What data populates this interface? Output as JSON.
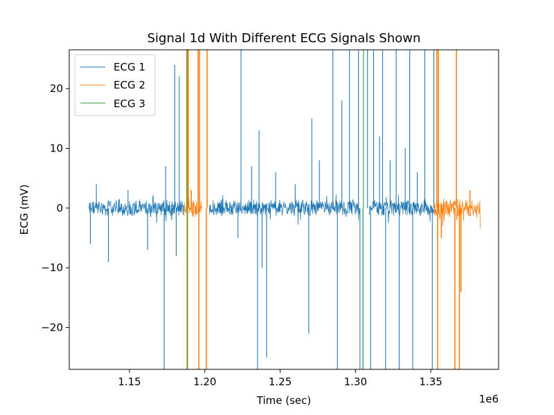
{
  "chart_data": {
    "type": "line",
    "title": "Signal 1d With Different ECG Signals Shown",
    "xlabel": "Time (sec)",
    "ylabel": "ECG (mV)",
    "x_offset_label": "1e6",
    "xlim": [
      1110000.0,
      1395000.0
    ],
    "ylim": [
      -27,
      26.5
    ],
    "x_ticks": [
      1150000,
      1200000,
      1250000,
      1300000,
      1350000
    ],
    "x_tick_labels": [
      "1.15",
      "1.20",
      "1.25",
      "1.30",
      "1.35"
    ],
    "y_ticks": [
      -20,
      -10,
      0,
      10,
      20
    ],
    "y_tick_labels": [
      "−20",
      "−10",
      "0",
      "10",
      "20"
    ],
    "grid": false,
    "legend_position": "top-left",
    "series": [
      {
        "name": "ECG 1",
        "color": "#1f77b4",
        "segments": [
          [
            1123000,
            1186000
          ],
          [
            1203000,
            1303000
          ],
          [
            1309000,
            1352000
          ]
        ],
        "noise_amplitude": 1.2,
        "spikes": [
          [
            1124000,
            -6
          ],
          [
            1128000,
            4
          ],
          [
            1136000,
            -9
          ],
          [
            1149000,
            3
          ],
          [
            1162000,
            -7
          ],
          [
            1173000,
            -27
          ],
          [
            1174000,
            7
          ],
          [
            1178000,
            -2
          ],
          [
            1180000,
            24
          ],
          [
            1181000,
            -8
          ],
          [
            1183000,
            22
          ],
          [
            1222000,
            -5
          ],
          [
            1224000,
            26.5
          ],
          [
            1231000,
            7
          ],
          [
            1235000,
            -27
          ],
          [
            1236000,
            13
          ],
          [
            1238000,
            -10
          ],
          [
            1241000,
            -25
          ],
          [
            1247000,
            6
          ],
          [
            1260000,
            4
          ],
          [
            1269000,
            -21
          ],
          [
            1271000,
            15
          ],
          [
            1276000,
            8
          ],
          [
            1285000,
            26.5
          ],
          [
            1288000,
            -27
          ],
          [
            1291000,
            18
          ],
          [
            1296000,
            26.5
          ],
          [
            1302000,
            26.5
          ],
          [
            1303000,
            -27
          ],
          [
            1305000,
            -27
          ],
          [
            1308000,
            26.5
          ],
          [
            1310000,
            -27
          ],
          [
            1312000,
            26.5
          ],
          [
            1316000,
            12
          ],
          [
            1318000,
            26.5
          ],
          [
            1320000,
            -27
          ],
          [
            1323000,
            8
          ],
          [
            1327000,
            26.5
          ],
          [
            1329000,
            -27
          ],
          [
            1333000,
            10
          ],
          [
            1336000,
            26.5
          ],
          [
            1338000,
            -27
          ],
          [
            1341000,
            6
          ],
          [
            1346000,
            26.5
          ],
          [
            1351000,
            -27
          ],
          [
            1352000,
            26.5
          ]
        ]
      },
      {
        "name": "ECG 2",
        "color": "#ff7f0e",
        "segments": [
          [
            1186000,
            1198000
          ],
          [
            1352000,
            1383000
          ]
        ],
        "noise_amplitude": 1.5,
        "spikes": [
          [
            1188000,
            26.5
          ],
          [
            1188500,
            -27
          ],
          [
            1189000,
            26.5
          ],
          [
            1191000,
            3
          ],
          [
            1195500,
            26.5
          ],
          [
            1196000,
            -27
          ],
          [
            1196500,
            26.5
          ],
          [
            1201000,
            -27
          ],
          [
            1201500,
            26.5
          ],
          [
            1354000,
            26.5
          ],
          [
            1354500,
            -27
          ],
          [
            1355000,
            26.5
          ],
          [
            1357000,
            -5
          ],
          [
            1366000,
            -27
          ],
          [
            1367000,
            26.5
          ],
          [
            1369000,
            -27
          ],
          [
            1370000,
            -14
          ],
          [
            1376000,
            3
          ]
        ]
      },
      {
        "name": "ECG 3",
        "color": "#2ca02c",
        "segments": [
          [
            1188000,
            1188300
          ],
          [
            1305000,
            1305300
          ]
        ],
        "noise_amplitude": 0.3,
        "spikes": [
          [
            1188200,
            -27
          ],
          [
            1188300,
            26.5
          ],
          [
            1305000,
            -27
          ],
          [
            1305300,
            26.5
          ]
        ]
      }
    ]
  }
}
